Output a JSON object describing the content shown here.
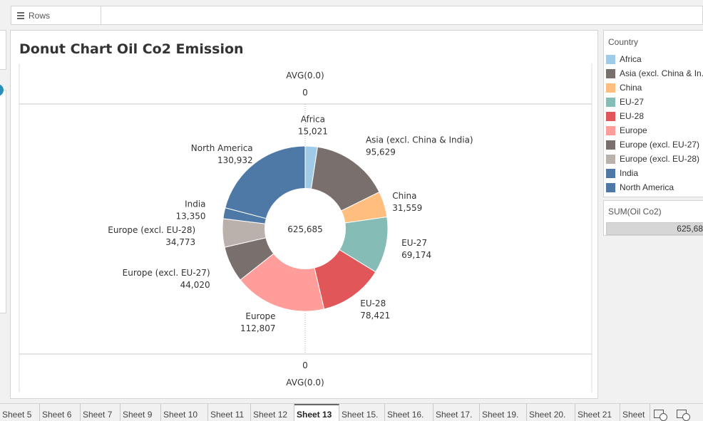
{
  "rows_shelf": {
    "label": "Rows",
    "icon": "list-icon"
  },
  "worksheet": {
    "title": "Donut Chart Oil Co2 Emission"
  },
  "chart_data": {
    "type": "pie",
    "donut": true,
    "title": "Donut Chart Oil Co2 Emission",
    "center_label": "625,685",
    "top_axis": {
      "label": "AVG(0.0)",
      "tick": "0"
    },
    "bottom_axis": {
      "label": "AVG(0.0)",
      "tick": "0"
    },
    "slices": [
      {
        "name": "Africa",
        "value": 15021,
        "label": "15,021",
        "color": "#a0cbe8"
      },
      {
        "name": "Asia (excl. China & India)",
        "value": 95629,
        "label": "95,629",
        "color": "#79706e"
      },
      {
        "name": "China",
        "value": 31559,
        "label": "31,559",
        "color": "#ffbe7d"
      },
      {
        "name": "EU-27",
        "value": 69174,
        "label": "69,174",
        "color": "#86bcb6"
      },
      {
        "name": "EU-28",
        "value": 78421,
        "label": "78,421",
        "color": "#e15759"
      },
      {
        "name": "Europe",
        "value": 112807,
        "label": "112,807",
        "color": "#ff9d9a"
      },
      {
        "name": "Europe (excl. EU-27)",
        "value": 44020,
        "label": "44,020",
        "color": "#79706e"
      },
      {
        "name": "Europe (excl. EU-28)",
        "value": 34773,
        "label": "34,773",
        "color": "#bab0ac"
      },
      {
        "name": "India",
        "value": 13350,
        "label": "13,350",
        "color": "#4e79a7"
      },
      {
        "name": "North America",
        "value": 130932,
        "label": "130,932",
        "color": "#4e79a7"
      }
    ]
  },
  "legend": {
    "title": "Country",
    "items": [
      {
        "label": "Africa",
        "color": "#a0cbe8"
      },
      {
        "label": "Asia (excl. China & In..",
        "color": "#79706e"
      },
      {
        "label": "China",
        "color": "#ffbe7d"
      },
      {
        "label": "EU-27",
        "color": "#86bcb6"
      },
      {
        "label": "EU-28",
        "color": "#e15759"
      },
      {
        "label": "Europe",
        "color": "#ff9d9a"
      },
      {
        "label": "Europe (excl. EU-27)",
        "color": "#79706e"
      },
      {
        "label": "Europe (excl. EU-28)",
        "color": "#bab0ac"
      },
      {
        "label": "India",
        "color": "#4e79a7"
      },
      {
        "label": "North America",
        "color": "#4e79a7"
      }
    ]
  },
  "size_legend": {
    "title": "SUM(Oil Co2)",
    "value": "625,68"
  },
  "tabs": [
    {
      "label": "Sheet 5"
    },
    {
      "label": "Sheet 6"
    },
    {
      "label": "Sheet 7"
    },
    {
      "label": "Sheet 9"
    },
    {
      "label": "Sheet 10"
    },
    {
      "label": "Sheet 11"
    },
    {
      "label": "Sheet 12"
    },
    {
      "label": "Sheet 13",
      "active": true
    },
    {
      "label": "Sheet 15."
    },
    {
      "label": "Sheet 16."
    },
    {
      "label": "Sheet 17."
    },
    {
      "label": "Sheet 19."
    },
    {
      "label": "Sheet 20."
    },
    {
      "label": "Sheet 21"
    },
    {
      "label": "Sheet"
    }
  ],
  "tab_icons": [
    "new-worksheet-icon",
    "new-dashboard-icon"
  ]
}
